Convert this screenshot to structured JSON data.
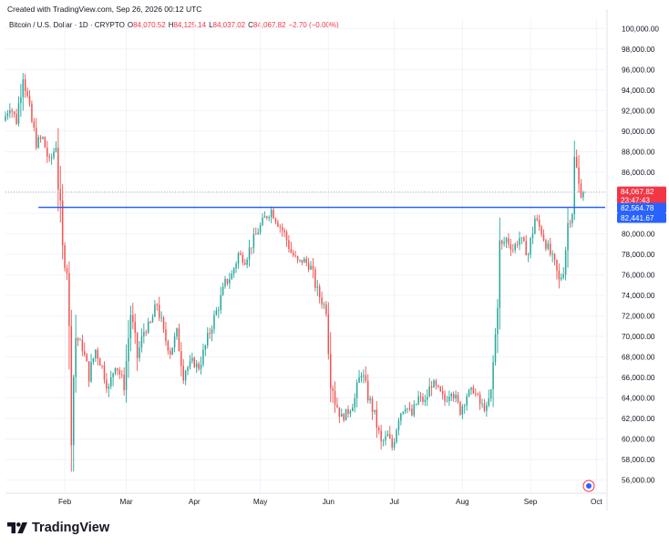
{
  "header": {
    "created_text": "Created with TradingView.com, Sep 26, 2026 00:12 UTC"
  },
  "legend": {
    "symbol": "Bitcoin / U.S. Dollar · 1D · CRYPTO",
    "open_label": "O",
    "open": "84,070.52",
    "high_label": "H",
    "high": "84,125.14",
    "low_label": "L",
    "low": "84,037.02",
    "close_label": "C",
    "close": "84,067.82",
    "change": "−2.70 (−0.00%)"
  },
  "brand": {
    "logo": "tradingview-logo-icon",
    "name": "TradingView"
  },
  "colors": {
    "up": "#26a69a",
    "down": "#ef5350",
    "hline": "#2962ff",
    "price_tag": "#f23645",
    "level_tag": "#2962ff",
    "grid": "#f0f3fa"
  },
  "chart_data": {
    "type": "candlestick",
    "title": "Bitcoin / U.S. Dollar · 1D · CRYPTO",
    "xlabel": "",
    "ylabel": "",
    "x_range": [
      "2026-01-05",
      "2026-10-05"
    ],
    "ylim": [
      54800,
      101000
    ],
    "y_ticks": [
      56000,
      58000,
      60000,
      62000,
      64000,
      66000,
      68000,
      70000,
      72000,
      74000,
      76000,
      78000,
      80000,
      82000,
      84000,
      86000,
      88000,
      90000,
      92000,
      94000,
      96000,
      98000,
      100000
    ],
    "y_tick_labels": [
      "56,000.00",
      "58,000.00",
      "60,000.00",
      "62,000.00",
      "64,000.00",
      "66,000.00",
      "68,000.00",
      "70,000.00",
      "72,000.00",
      "74,000.00",
      "76,000.00",
      "78,000.00",
      "80,000.00",
      "82,000.00",
      "84,000.00",
      "86,000.00",
      "88,000.00",
      "90,000.00",
      "92,000.00",
      "94,000.00",
      "96,000.00",
      "98,000.00",
      "100,000.00"
    ],
    "x_ticks": [
      {
        "date": "2026-02-01",
        "label": "Feb"
      },
      {
        "date": "2026-03-01",
        "label": "Mar"
      },
      {
        "date": "2026-04-01",
        "label": "Apr"
      },
      {
        "date": "2026-05-01",
        "label": "May"
      },
      {
        "date": "2026-06-01",
        "label": "Jun"
      },
      {
        "date": "2026-07-01",
        "label": "Jul"
      },
      {
        "date": "2026-08-01",
        "label": "Aug"
      },
      {
        "date": "2026-09-01",
        "label": "Sep"
      },
      {
        "date": "2026-10-01",
        "label": "Oct"
      }
    ],
    "grid": true,
    "horizontal_line": {
      "value": 82564.78,
      "color": "#2962ff",
      "start_date": "2026-01-20"
    },
    "price_labels": [
      {
        "value": 84067.82,
        "text": "84,067.82",
        "countdown": "23:47:43",
        "color": "#f23645"
      },
      {
        "value": 82564.78,
        "text": "82,564.78",
        "color": "#2962ff"
      },
      {
        "value": 82441.67,
        "text": "82,441.67",
        "color": "#2962ff"
      }
    ],
    "close_series": [
      {
        "date": "2026-01-05",
        "close": 91000
      },
      {
        "date": "2026-01-08",
        "close": 92500
      },
      {
        "date": "2026-01-11",
        "close": 91000
      },
      {
        "date": "2026-01-14",
        "close": 95800
      },
      {
        "date": "2026-01-17",
        "close": 91800
      },
      {
        "date": "2026-01-20",
        "close": 89000
      },
      {
        "date": "2026-01-23",
        "close": 89300
      },
      {
        "date": "2026-01-26",
        "close": 86800
      },
      {
        "date": "2026-01-29",
        "close": 88700
      },
      {
        "date": "2026-02-01",
        "close": 78000
      },
      {
        "date": "2026-02-03",
        "close": 76500
      },
      {
        "date": "2026-02-05",
        "close": 62500
      },
      {
        "date": "2026-02-07",
        "close": 70000
      },
      {
        "date": "2026-02-10",
        "close": 68900
      },
      {
        "date": "2026-02-13",
        "close": 66200
      },
      {
        "date": "2026-02-16",
        "close": 68700
      },
      {
        "date": "2026-02-19",
        "close": 67000
      },
      {
        "date": "2026-02-22",
        "close": 64800
      },
      {
        "date": "2026-02-25",
        "close": 67500
      },
      {
        "date": "2026-03-01",
        "close": 65200
      },
      {
        "date": "2026-03-04",
        "close": 72300
      },
      {
        "date": "2026-03-07",
        "close": 68000
      },
      {
        "date": "2026-03-10",
        "close": 70500
      },
      {
        "date": "2026-03-13",
        "close": 71200
      },
      {
        "date": "2026-03-16",
        "close": 73200
      },
      {
        "date": "2026-03-19",
        "close": 70200
      },
      {
        "date": "2026-03-22",
        "close": 68500
      },
      {
        "date": "2026-03-25",
        "close": 70300
      },
      {
        "date": "2026-03-28",
        "close": 66500
      },
      {
        "date": "2026-04-01",
        "close": 67500
      },
      {
        "date": "2026-04-04",
        "close": 67000
      },
      {
        "date": "2026-04-07",
        "close": 69000
      },
      {
        "date": "2026-04-10",
        "close": 71200
      },
      {
        "date": "2026-04-13",
        "close": 73000
      },
      {
        "date": "2026-04-16",
        "close": 75100
      },
      {
        "date": "2026-04-19",
        "close": 76000
      },
      {
        "date": "2026-04-22",
        "close": 78000
      },
      {
        "date": "2026-04-25",
        "close": 77400
      },
      {
        "date": "2026-04-28",
        "close": 79000
      },
      {
        "date": "2026-05-01",
        "close": 80300
      },
      {
        "date": "2026-05-04",
        "close": 81500
      },
      {
        "date": "2026-05-07",
        "close": 82300
      },
      {
        "date": "2026-05-10",
        "close": 81100
      },
      {
        "date": "2026-05-13",
        "close": 80000
      },
      {
        "date": "2026-05-16",
        "close": 78200
      },
      {
        "date": "2026-05-19",
        "close": 77200
      },
      {
        "date": "2026-05-22",
        "close": 77400
      },
      {
        "date": "2026-05-25",
        "close": 76700
      },
      {
        "date": "2026-05-28",
        "close": 74300
      },
      {
        "date": "2026-06-01",
        "close": 72600
      },
      {
        "date": "2026-06-03",
        "close": 66500
      },
      {
        "date": "2026-06-05",
        "close": 63800
      },
      {
        "date": "2026-06-08",
        "close": 62000
      },
      {
        "date": "2026-06-11",
        "close": 62700
      },
      {
        "date": "2026-06-14",
        "close": 63900
      },
      {
        "date": "2026-06-17",
        "close": 66700
      },
      {
        "date": "2026-06-20",
        "close": 64200
      },
      {
        "date": "2026-06-23",
        "close": 62300
      },
      {
        "date": "2026-06-26",
        "close": 59500
      },
      {
        "date": "2026-06-29",
        "close": 60300
      },
      {
        "date": "2026-07-01",
        "close": 59200
      },
      {
        "date": "2026-07-04",
        "close": 62300
      },
      {
        "date": "2026-07-07",
        "close": 63300
      },
      {
        "date": "2026-07-10",
        "close": 62300
      },
      {
        "date": "2026-07-13",
        "close": 64000
      },
      {
        "date": "2026-07-16",
        "close": 63600
      },
      {
        "date": "2026-07-19",
        "close": 65500
      },
      {
        "date": "2026-07-22",
        "close": 64700
      },
      {
        "date": "2026-07-25",
        "close": 63700
      },
      {
        "date": "2026-07-28",
        "close": 64900
      },
      {
        "date": "2026-08-01",
        "close": 62800
      },
      {
        "date": "2026-08-04",
        "close": 64300
      },
      {
        "date": "2026-08-07",
        "close": 64800
      },
      {
        "date": "2026-08-10",
        "close": 63400
      },
      {
        "date": "2026-08-13",
        "close": 62900
      },
      {
        "date": "2026-08-15",
        "close": 64500
      },
      {
        "date": "2026-08-17",
        "close": 70000
      },
      {
        "date": "2026-08-19",
        "close": 78500
      },
      {
        "date": "2026-08-22",
        "close": 79500
      },
      {
        "date": "2026-08-25",
        "close": 78500
      },
      {
        "date": "2026-08-28",
        "close": 79600
      },
      {
        "date": "2026-09-01",
        "close": 78000
      },
      {
        "date": "2026-09-04",
        "close": 81500
      },
      {
        "date": "2026-09-07",
        "close": 80200
      },
      {
        "date": "2026-09-10",
        "close": 78500
      },
      {
        "date": "2026-09-13",
        "close": 77000
      },
      {
        "date": "2026-09-15",
        "close": 75300
      },
      {
        "date": "2026-09-17",
        "close": 76500
      },
      {
        "date": "2026-09-19",
        "close": 81000
      },
      {
        "date": "2026-09-21",
        "close": 82200
      },
      {
        "date": "2026-09-22",
        "close": 86800
      },
      {
        "date": "2026-09-23",
        "close": 86300
      },
      {
        "date": "2026-09-24",
        "close": 84600
      },
      {
        "date": "2026-09-25",
        "close": 84070
      },
      {
        "date": "2026-09-26",
        "close": 84067.82
      }
    ]
  }
}
